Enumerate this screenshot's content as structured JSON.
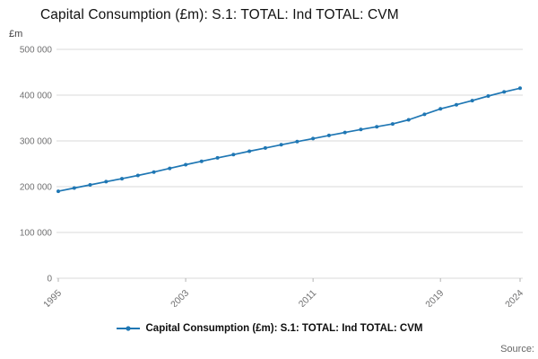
{
  "title": "Capital Consumption (£m): S.1: TOTAL: Ind TOTAL: CVM",
  "unit_label": "£m",
  "source_label": "Source:",
  "legend": {
    "label": "Capital Consumption (£m): S.1: TOTAL: Ind TOTAL: CVM"
  },
  "colors": {
    "line": "#1f77b4",
    "grid": "#d9d9d9",
    "axis_text": "#707071",
    "tick_mark": "#b3b3b3",
    "title_text": "#111111"
  },
  "chart_data": {
    "type": "line",
    "title": "Capital Consumption (£m): S.1: TOTAL: Ind TOTAL: CVM",
    "xlabel": "",
    "ylabel": "£m",
    "ylim": [
      0,
      500000
    ],
    "grid": "horizontal",
    "legend_position": "bottom",
    "yticks": [
      0,
      100000,
      200000,
      300000,
      400000,
      500000
    ],
    "ytick_labels": [
      "0",
      "100 000",
      "200 000",
      "300 000",
      "400 000",
      "500 000"
    ],
    "x": [
      1995,
      1996,
      1997,
      1998,
      1999,
      2000,
      2001,
      2002,
      2003,
      2004,
      2005,
      2006,
      2007,
      2008,
      2009,
      2010,
      2011,
      2012,
      2013,
      2014,
      2015,
      2016,
      2017,
      2018,
      2019,
      2020,
      2021,
      2022,
      2023,
      2024
    ],
    "xtick_years": [
      1995,
      2003,
      2011,
      2019,
      2024
    ],
    "series": [
      {
        "name": "Capital Consumption (£m): S.1: TOTAL: Ind TOTAL: CVM",
        "values": [
          190000,
          197000,
          204000,
          211000,
          217500,
          224500,
          232000,
          240000,
          248000,
          255500,
          263000,
          270000,
          277500,
          284500,
          291500,
          298500,
          305000,
          312000,
          318500,
          325000,
          331000,
          337000,
          346000,
          358000,
          370000,
          379000,
          388000,
          398000,
          407000,
          415000
        ]
      }
    ]
  }
}
